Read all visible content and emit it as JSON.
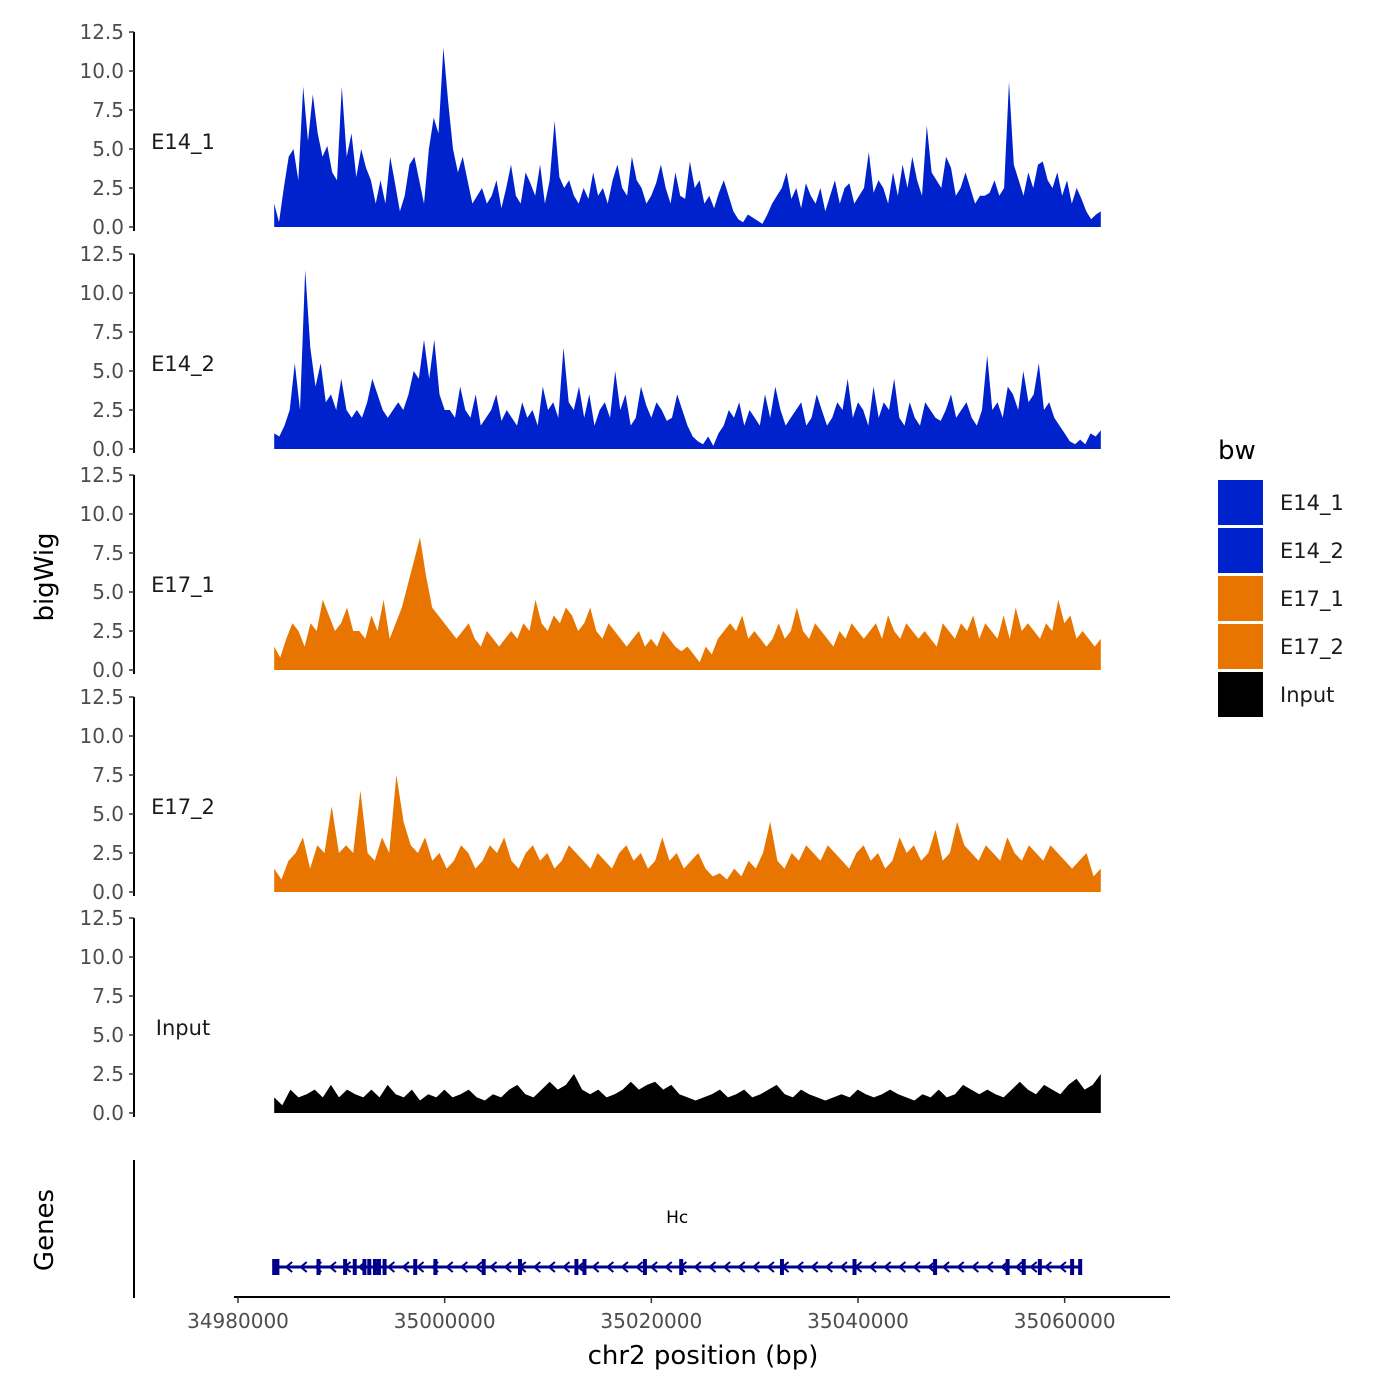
{
  "chart_data": {
    "type": "area",
    "description_free": true,
    "x": {
      "title": "chr2 position (bp)",
      "range": [
        34980000,
        35070000
      ],
      "ticks": [
        34980000,
        35000000,
        35020000,
        35040000,
        35060000
      ],
      "tick_labels": [
        "34980000",
        "35000000",
        "35020000",
        "35040000",
        "35060000"
      ],
      "data_start": 34983500,
      "data_end": 35063500
    },
    "y": {
      "title": "bigWig",
      "range": [
        0,
        12.5
      ],
      "ticks": [
        0,
        2.5,
        5,
        7.5,
        10,
        12.5
      ],
      "tick_labels": [
        "0.0",
        "2.5",
        "5.0",
        "7.5",
        "10.0",
        "12.5"
      ]
    },
    "tracks": [
      {
        "name": "E14_1",
        "color": "#0022CC",
        "values": [
          1.5,
          0.3,
          2.5,
          4.5,
          5.0,
          3.0,
          9.0,
          5.5,
          8.5,
          6.0,
          4.5,
          5.2,
          3.5,
          3.0,
          9.0,
          4.5,
          6.0,
          3.2,
          5.0,
          3.8,
          3.0,
          1.5,
          3.0,
          1.5,
          4.5,
          2.8,
          1.0,
          2.0,
          4.0,
          4.5,
          3.0,
          1.5,
          5.0,
          7.0,
          6.0,
          11.5,
          8.0,
          5.0,
          3.5,
          4.5,
          3.0,
          1.5,
          2.0,
          2.5,
          1.5,
          2.0,
          3.0,
          1.2,
          2.5,
          4.0,
          2.0,
          1.5,
          3.5,
          2.8,
          2.0,
          4.0,
          1.5,
          3.0,
          6.8,
          3.2,
          2.5,
          3.0,
          2.0,
          1.5,
          2.5,
          1.8,
          3.5,
          2.0,
          2.5,
          1.5,
          3.0,
          4.0,
          2.5,
          2.0,
          4.5,
          3.0,
          2.5,
          1.5,
          2.0,
          2.8,
          4.0,
          2.5,
          1.5,
          3.5,
          2.0,
          1.8,
          4.2,
          2.5,
          3.0,
          1.5,
          2.0,
          1.2,
          2.2,
          3.0,
          2.0,
          1.0,
          0.5,
          0.3,
          0.8,
          0.6,
          0.4,
          0.2,
          0.8,
          1.5,
          2.0,
          2.5,
          3.5,
          1.8,
          2.5,
          1.2,
          2.8,
          2.0,
          1.5,
          2.5,
          1.0,
          2.0,
          3.0,
          1.5,
          2.5,
          2.8,
          1.5,
          2.0,
          2.5,
          4.8,
          2.2,
          3.0,
          2.5,
          1.5,
          3.5,
          2.0,
          4.0,
          2.5,
          4.5,
          3.0,
          2.0,
          6.5,
          3.5,
          3.0,
          2.5,
          4.5,
          3.8,
          2.0,
          2.5,
          3.5,
          2.5,
          1.5,
          2.0,
          2.0,
          2.2,
          3.0,
          2.0,
          2.5,
          9.3,
          4.0,
          3.0,
          2.0,
          3.5,
          2.5,
          4.0,
          4.2,
          3.0,
          2.5,
          3.5,
          2.0,
          3.0,
          1.5,
          2.5,
          1.8,
          1.0,
          0.5,
          0.8,
          1.0
        ]
      },
      {
        "name": "E14_2",
        "color": "#0022CC",
        "values": [
          1.0,
          0.8,
          1.5,
          2.5,
          5.5,
          2.5,
          11.5,
          6.5,
          4.0,
          5.5,
          3.0,
          3.5,
          2.5,
          4.5,
          2.5,
          2.0,
          2.5,
          2.0,
          3.0,
          4.5,
          3.5,
          2.5,
          2.0,
          2.5,
          3.0,
          2.5,
          3.5,
          5.0,
          4.5,
          7.0,
          4.5,
          7.0,
          3.5,
          2.5,
          2.5,
          2.0,
          4.0,
          2.5,
          2.0,
          3.5,
          1.5,
          2.0,
          2.5,
          3.5,
          1.8,
          2.5,
          2.0,
          1.5,
          3.0,
          2.0,
          2.5,
          1.5,
          4.0,
          2.5,
          3.0,
          2.0,
          6.5,
          3.0,
          2.5,
          4.0,
          2.0,
          3.5,
          1.5,
          2.5,
          3.0,
          2.0,
          5.0,
          2.5,
          3.5,
          1.5,
          2.0,
          4.0,
          2.8,
          2.0,
          3.0,
          2.5,
          1.8,
          2.0,
          3.5,
          2.5,
          1.5,
          0.8,
          0.5,
          0.3,
          0.8,
          0.2,
          1.0,
          1.5,
          2.5,
          2.0,
          3.0,
          1.5,
          2.5,
          2.0,
          1.5,
          3.5,
          2.0,
          4.0,
          2.5,
          1.5,
          2.0,
          2.5,
          3.0,
          1.5,
          2.0,
          3.5,
          2.5,
          1.5,
          2.0,
          3.0,
          2.5,
          4.5,
          2.0,
          3.0,
          2.5,
          1.5,
          4.0,
          2.0,
          3.0,
          2.5,
          4.5,
          2.0,
          1.5,
          3.0,
          2.0,
          1.5,
          3.0,
          2.5,
          2.0,
          1.8,
          2.5,
          3.5,
          2.0,
          2.5,
          3.0,
          2.0,
          1.5,
          2.5,
          6.0,
          2.5,
          3.0,
          2.0,
          4.0,
          3.5,
          2.5,
          5.0,
          3.0,
          3.5,
          5.5,
          2.5,
          3.0,
          2.0,
          1.5,
          1.0,
          0.5,
          0.3,
          0.6,
          0.3,
          1.0,
          0.8,
          1.2
        ]
      },
      {
        "name": "E17_1",
        "color": "#E87500",
        "values": [
          1.5,
          0.8,
          2.0,
          3.0,
          2.5,
          1.5,
          3.0,
          2.5,
          4.5,
          3.5,
          2.5,
          3.0,
          4.0,
          2.5,
          2.5,
          2.0,
          3.5,
          2.5,
          4.5,
          2.0,
          3.0,
          4.0,
          5.5,
          7.0,
          8.5,
          6.0,
          4.0,
          3.5,
          3.0,
          2.5,
          2.0,
          2.5,
          3.0,
          2.0,
          1.5,
          2.5,
          2.0,
          1.5,
          2.0,
          2.5,
          2.0,
          3.0,
          2.5,
          4.5,
          3.0,
          2.5,
          3.5,
          3.0,
          4.0,
          3.5,
          2.5,
          3.0,
          4.0,
          2.5,
          2.0,
          3.0,
          2.5,
          2.0,
          1.5,
          2.0,
          2.5,
          1.5,
          2.0,
          1.5,
          2.5,
          2.0,
          1.5,
          1.2,
          1.5,
          1.0,
          0.5,
          1.5,
          1.0,
          2.0,
          2.5,
          3.0,
          2.5,
          3.5,
          2.0,
          2.5,
          2.0,
          1.5,
          2.0,
          3.0,
          2.0,
          2.5,
          4.0,
          2.5,
          2.0,
          3.0,
          2.5,
          2.0,
          1.5,
          2.5,
          2.0,
          3.0,
          2.5,
          2.0,
          2.5,
          3.0,
          2.0,
          3.5,
          2.5,
          2.0,
          3.0,
          2.5,
          2.0,
          2.5,
          2.0,
          1.5,
          3.0,
          2.5,
          2.0,
          3.0,
          2.5,
          3.5,
          2.0,
          3.0,
          2.5,
          2.0,
          3.5,
          2.0,
          4.0,
          2.5,
          3.0,
          2.5,
          2.0,
          3.0,
          2.5,
          4.5,
          3.0,
          3.5,
          2.0,
          2.5,
          2.0,
          1.5,
          2.0
        ]
      },
      {
        "name": "E17_2",
        "color": "#E87500",
        "values": [
          1.5,
          0.8,
          2.0,
          2.5,
          3.5,
          1.5,
          3.0,
          2.5,
          5.5,
          2.5,
          3.0,
          2.5,
          6.5,
          2.5,
          2.0,
          3.5,
          2.5,
          7.5,
          4.5,
          3.0,
          2.5,
          3.5,
          2.0,
          2.5,
          1.5,
          2.0,
          3.0,
          2.5,
          1.5,
          2.0,
          3.0,
          2.5,
          3.5,
          2.0,
          1.5,
          2.5,
          3.0,
          2.0,
          2.5,
          1.5,
          2.0,
          3.0,
          2.5,
          2.0,
          1.5,
          2.5,
          2.0,
          1.5,
          2.5,
          3.0,
          2.0,
          2.5,
          1.5,
          2.0,
          3.5,
          2.0,
          2.5,
          1.5,
          2.0,
          2.5,
          1.5,
          1.0,
          1.2,
          0.8,
          1.5,
          1.0,
          2.0,
          1.5,
          2.5,
          4.5,
          2.0,
          1.5,
          2.5,
          2.0,
          3.0,
          2.5,
          2.0,
          3.0,
          2.5,
          2.0,
          1.5,
          2.5,
          3.0,
          2.0,
          2.5,
          1.5,
          2.0,
          3.5,
          2.5,
          3.0,
          2.0,
          2.5,
          4.0,
          2.0,
          2.5,
          4.5,
          3.0,
          2.5,
          2.0,
          3.0,
          2.5,
          2.0,
          3.5,
          2.5,
          2.0,
          3.0,
          2.5,
          2.0,
          3.0,
          2.5,
          2.0,
          1.5,
          2.0,
          2.5,
          1.0,
          1.5
        ]
      },
      {
        "name": "Input",
        "color": "#000000",
        "values": [
          1.0,
          0.5,
          1.5,
          1.0,
          1.2,
          1.5,
          1.0,
          1.8,
          1.0,
          1.5,
          1.2,
          1.0,
          1.5,
          1.0,
          1.8,
          1.2,
          1.0,
          1.5,
          0.8,
          1.2,
          1.0,
          1.5,
          1.0,
          1.2,
          1.5,
          1.0,
          0.8,
          1.2,
          1.0,
          1.5,
          1.8,
          1.2,
          1.0,
          1.5,
          2.0,
          1.5,
          1.8,
          2.5,
          1.5,
          1.2,
          1.5,
          1.0,
          1.2,
          1.5,
          2.0,
          1.5,
          1.8,
          2.0,
          1.5,
          1.8,
          1.2,
          1.0,
          0.8,
          1.0,
          1.2,
          1.5,
          1.0,
          1.2,
          1.5,
          1.0,
          1.2,
          1.5,
          1.8,
          1.2,
          1.0,
          1.5,
          1.2,
          1.0,
          0.8,
          1.0,
          1.2,
          1.0,
          1.5,
          1.2,
          1.0,
          1.2,
          1.5,
          1.2,
          1.0,
          0.8,
          1.2,
          1.0,
          1.5,
          1.0,
          1.2,
          1.8,
          1.5,
          1.2,
          1.5,
          1.2,
          1.0,
          1.5,
          2.0,
          1.5,
          1.2,
          1.8,
          1.5,
          1.2,
          1.8,
          2.2,
          1.5,
          1.8,
          2.5
        ]
      }
    ],
    "gene_track": {
      "axis_title": "Genes",
      "gene_name": "Hc",
      "strand": "-",
      "start": 34983500,
      "end": 35061500,
      "color": "#00008B"
    },
    "legend": {
      "title": "bw",
      "position": "right",
      "entries": [
        {
          "label": "E14_1",
          "color": "#0022CC"
        },
        {
          "label": "E14_2",
          "color": "#0022CC"
        },
        {
          "label": "E17_1",
          "color": "#E87500"
        },
        {
          "label": "E17_2",
          "color": "#E87500"
        },
        {
          "label": "Input",
          "color": "#000000"
        }
      ]
    }
  }
}
